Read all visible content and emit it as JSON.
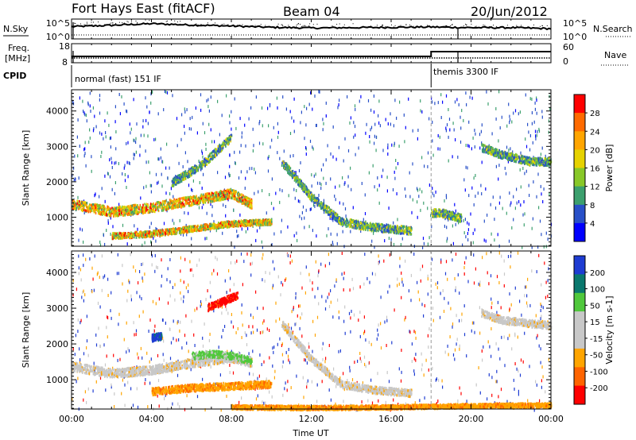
{
  "header": {
    "station": "Fort Hays East (fitACF)",
    "beam": "Beam 04",
    "date": "20/Jun/2012"
  },
  "noise_panel": {
    "left_label": "N.Sky",
    "left_ticks": [
      "10^5",
      "10^0"
    ],
    "right_ticks": [
      "10^5",
      "10^0"
    ],
    "right_label": "N.Search",
    "nsky_level": [
      3.2,
      3.6,
      4.1,
      3.7,
      3.4,
      3.0,
      2.8,
      2.9,
      3.0,
      3.1,
      2.9,
      2.9,
      2.6
    ]
  },
  "freq_panel": {
    "left_label_1": "Freq.",
    "left_label_2": "[MHz]",
    "left_ticks": [
      "18",
      "8"
    ],
    "right_ticks": [
      "60",
      "0"
    ],
    "right_label": "Nave",
    "freq_mhz": 10.5,
    "nave_before": 20,
    "nave_after": 35,
    "change_hour": 18.0
  },
  "cpid": {
    "label": "CPID",
    "segments": [
      {
        "name": "normal (fast) 151 IF",
        "start_hour": 0.0
      },
      {
        "name": "themis 3300 IF",
        "start_hour": 18.0
      }
    ]
  },
  "chart_data": [
    {
      "type": "heatmap",
      "title": "",
      "xlabel": "",
      "ylabel": "Slant Range [km]",
      "xlim": [
        0,
        24
      ],
      "ylim": [
        180,
        4600
      ],
      "x_ticks": [
        "00:00",
        "04:00",
        "08:00",
        "12:00",
        "16:00",
        "20:00",
        "00:00"
      ],
      "y_ticks": [
        1000,
        2000,
        3000,
        4000
      ],
      "colorbar": {
        "label": "Power [dB]",
        "ticks": [
          "28",
          "24",
          "20",
          "16",
          "12",
          "8",
          "4"
        ],
        "colors": [
          "#ff0000",
          "#ff6a00",
          "#ffa500",
          "#e6d200",
          "#88c828",
          "#3ca06e",
          "#2850c8",
          "#0000ff"
        ]
      },
      "features": [
        {
          "name": "main_band",
          "hours": [
            0,
            2,
            4,
            6,
            8,
            9
          ],
          "range_km": [
            1400,
            1180,
            1300,
            1500,
            1700,
            1400
          ]
        },
        {
          "name": "lower_band",
          "hours": [
            2,
            4,
            6,
            8,
            10
          ],
          "range_km": [
            500,
            560,
            700,
            850,
            900
          ]
        },
        {
          "name": "upper_patch",
          "hours": [
            5,
            6.5,
            8
          ],
          "range_km": [
            2000,
            2500,
            3300
          ]
        },
        {
          "name": "afternoon_band",
          "hours": [
            10.5,
            12,
            13.5,
            15,
            17
          ],
          "range_km": [
            2600,
            1600,
            900,
            750,
            650
          ]
        },
        {
          "name": "post_change",
          "hours": [
            18,
            18.5,
            19.5
          ],
          "range_km": [
            1150,
            1150,
            1000
          ]
        },
        {
          "name": "evening_band",
          "hours": [
            20.5,
            21.5,
            23,
            24
          ],
          "range_km": [
            3000,
            2800,
            2600,
            2600
          ]
        }
      ]
    },
    {
      "type": "heatmap",
      "title": "",
      "xlabel": "Time UT",
      "ylabel": "Slant Range [km]",
      "xlim": [
        0,
        24
      ],
      "ylim": [
        180,
        4600
      ],
      "x_ticks": [
        "00:00",
        "04:00",
        "08:00",
        "12:00",
        "16:00",
        "20:00",
        "00:00"
      ],
      "y_ticks": [
        1000,
        2000,
        3000,
        4000
      ],
      "colorbar": {
        "label": "Velocity [m s-1]",
        "ticks": [
          "200",
          "100",
          "50",
          "15",
          "-15",
          "-50",
          "-100",
          "-200"
        ],
        "colors": [
          "#1e3cd2",
          "#0a786e",
          "#50c83c",
          "#c8c8c8",
          "#c8c8c8",
          "#ffa500",
          "#ff6400",
          "#ff0000"
        ]
      },
      "features": [
        {
          "name": "main_band",
          "hours": [
            0,
            2,
            4,
            6,
            8,
            9
          ],
          "range_km": [
            1400,
            1200,
            1300,
            1500,
            1650,
            1500
          ],
          "velocity": 0
        },
        {
          "name": "green_patch",
          "hours": [
            6,
            7,
            8,
            9
          ],
          "range_km": [
            1700,
            1750,
            1700,
            1550
          ],
          "velocity": 60
        },
        {
          "name": "red_patch",
          "hours": [
            6.8,
            7.5,
            8.3
          ],
          "range_km": [
            3050,
            3200,
            3400
          ],
          "velocity": -200
        },
        {
          "name": "blue_patch",
          "hours": [
            4.0,
            4.5
          ],
          "range_km": [
            2200,
            2250
          ],
          "velocity": 200
        },
        {
          "name": "orange_lower",
          "hours": [
            4,
            6,
            8,
            10
          ],
          "range_km": [
            700,
            800,
            850,
            900
          ],
          "velocity": -50
        },
        {
          "name": "ground_orange",
          "hours": [
            8,
            12,
            16,
            20,
            24
          ],
          "range_km": [
            260,
            240,
            260,
            300,
            320
          ],
          "velocity": -50
        },
        {
          "name": "afternoon_gray",
          "hours": [
            10.5,
            12,
            13.5,
            15,
            17
          ],
          "range_km": [
            2600,
            1600,
            900,
            750,
            650
          ],
          "velocity": 0
        },
        {
          "name": "evening_gray",
          "hours": [
            20.5,
            21.5,
            23,
            24
          ],
          "range_km": [
            2900,
            2700,
            2600,
            2550
          ],
          "velocity": 0
        }
      ]
    }
  ]
}
